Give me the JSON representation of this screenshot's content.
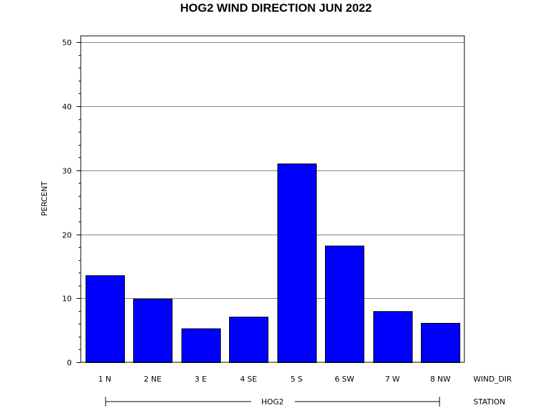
{
  "chart_data": {
    "type": "bar",
    "title": "HOG2 WIND DIRECTION JUN 2022",
    "ylabel": "PERCENT",
    "xlabel": "WIND_DIR",
    "group_axis_label": "STATION",
    "group_label": "HOG2",
    "categories": [
      "1 N",
      "2 NE",
      "3 E",
      "4 SE",
      "5 S",
      "6 SW",
      "7 W",
      "8 NW"
    ],
    "values": [
      13.6,
      9.9,
      5.3,
      7.1,
      31.1,
      18.2,
      8.0,
      6.1
    ],
    "ylim": [
      0,
      51
    ],
    "yticks": [
      0,
      10,
      20,
      30,
      40,
      50
    ],
    "grid": true,
    "bar_color": "#0000ff",
    "legend": "none"
  }
}
